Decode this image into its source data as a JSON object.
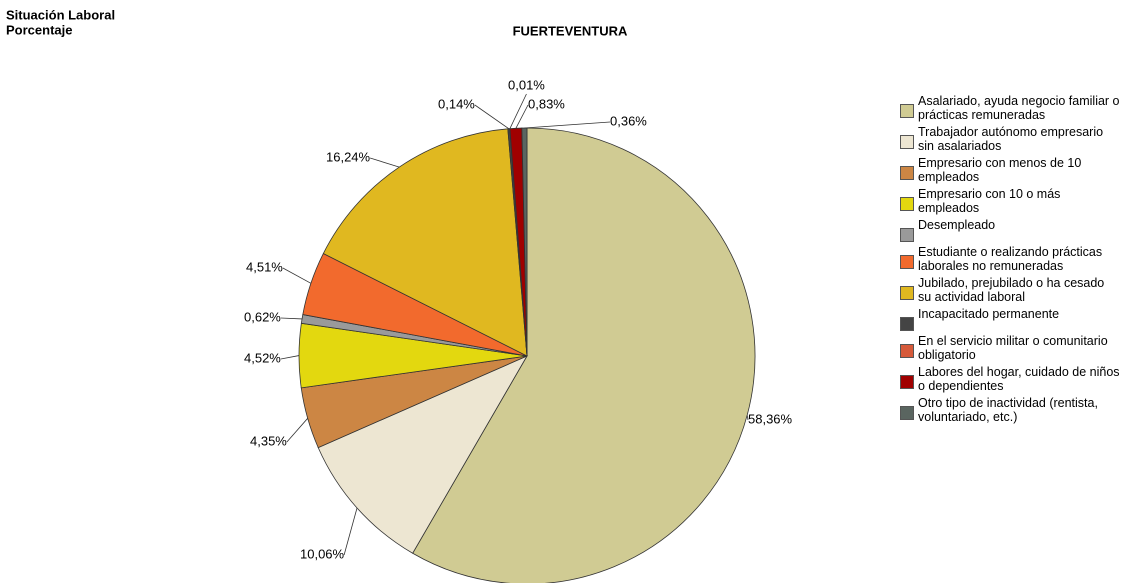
{
  "chart_data": {
    "type": "pie",
    "title": "FUERTEVENTURA",
    "heading_lines": [
      "Situación Laboral",
      "Porcentaje"
    ],
    "categories": [
      "Asalariado, ayuda negocio familiar o prácticas remuneradas",
      "Trabajador autónomo empresario sin asalariados",
      "Empresario con menos de 10 empleados",
      "Empresario con 10 o más empleados",
      "Desempleado",
      "Estudiante o realizando prácticas laborales no remuneradas",
      "Jubilado, prejubilado o ha cesado su actividad laboral",
      "Incapacitado permanente",
      "En el servicio militar o comunitario obligatorio",
      "Labores del hogar, cuidado de niños o dependientes",
      "Otro tipo de inactividad (rentista, voluntariado, etc.)"
    ],
    "values": [
      58.36,
      10.06,
      4.35,
      4.52,
      0.62,
      4.51,
      16.24,
      0.14,
      0.01,
      0.83,
      0.36
    ],
    "value_labels": [
      "58,36%",
      "10,06%",
      "4,35%",
      "4,52%",
      "0,62%",
      "4,51%",
      "16,24%",
      "0,14%",
      "0,01%",
      "0,83%",
      "0,36%"
    ],
    "colors": [
      "#d0cb93",
      "#ede6d2",
      "#cc8644",
      "#e3d80f",
      "#9a9a9a",
      "#f26a2d",
      "#e0b820",
      "#444444",
      "#d65a3a",
      "#a00000",
      "#5a6560"
    ],
    "legend": "right"
  }
}
